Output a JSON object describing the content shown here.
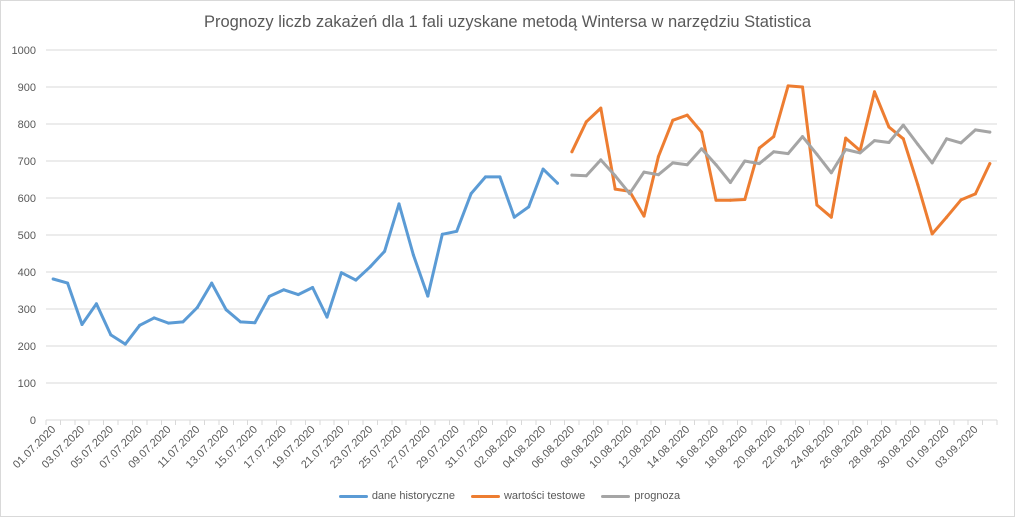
{
  "chart_data": {
    "type": "line",
    "title": "Prognozy liczb zakażeń dla 1 fali uzyskane metodą Wintersa w narzędziu Statistica",
    "ylim": [
      0,
      1000
    ],
    "y_ticks": [
      0,
      100,
      200,
      300,
      400,
      500,
      600,
      700,
      800,
      900,
      1000
    ],
    "grid": true,
    "legend": "bottom",
    "categories": [
      "01.07.2020",
      "02.07.2020",
      "03.07.2020",
      "04.07.2020",
      "05.07.2020",
      "06.07.2020",
      "07.07.2020",
      "08.07.2020",
      "09.07.2020",
      "10.07.2020",
      "11.07.2020",
      "12.07.2020",
      "13.07.2020",
      "14.07.2020",
      "15.07.2020",
      "16.07.2020",
      "17.07.2020",
      "18.07.2020",
      "19.07.2020",
      "20.07.2020",
      "21.07.2020",
      "22.07.2020",
      "23.07.2020",
      "24.07.2020",
      "25.07.2020",
      "26.07.2020",
      "27.07.2020",
      "28.07.2020",
      "29.07.2020",
      "30.07.2020",
      "31.07.2020",
      "01.08.2020",
      "02.08.2020",
      "03.08.2020",
      "04.08.2020",
      "05.08.2020",
      "06.08.2020",
      "07.08.2020",
      "08.08.2020",
      "09.08.2020",
      "10.08.2020",
      "11.08.2020",
      "12.08.2020",
      "13.08.2020",
      "14.08.2020",
      "15.08.2020",
      "16.08.2020",
      "17.08.2020",
      "18.08.2020",
      "19.08.2020",
      "20.08.2020",
      "21.08.2020",
      "22.08.2020",
      "23.08.2020",
      "24.08.2020",
      "25.08.2020",
      "26.08.2020",
      "27.08.2020",
      "28.08.2020",
      "29.08.2020",
      "30.08.2020",
      "31.08.2020",
      "01.09.2020",
      "02.09.2020",
      "03.09.2020",
      "04.09.2020"
    ],
    "series": [
      {
        "name": "dane historyczne",
        "color": "#5b9bd5",
        "values": [
          381,
          370,
          258,
          314,
          230,
          205,
          256,
          276,
          262,
          265,
          304,
          370,
          298,
          265,
          263,
          334,
          352,
          339,
          358,
          278,
          398,
          378,
          414,
          456,
          584,
          446,
          335,
          502,
          510,
          612,
          657,
          657,
          548,
          576,
          678,
          640,
          null,
          null,
          null,
          null,
          null,
          null,
          null,
          null,
          null,
          null,
          null,
          null,
          null,
          null,
          null,
          null,
          null,
          null,
          null,
          null,
          null,
          null,
          null,
          null,
          null,
          null,
          null,
          null,
          null,
          null
        ]
      },
      {
        "name": "wartości testowe",
        "color": "#ed7d31",
        "values": [
          null,
          null,
          null,
          null,
          null,
          null,
          null,
          null,
          null,
          null,
          null,
          null,
          null,
          null,
          null,
          null,
          null,
          null,
          null,
          null,
          null,
          null,
          null,
          null,
          null,
          null,
          null,
          null,
          null,
          null,
          null,
          null,
          null,
          null,
          null,
          null,
          725,
          806,
          843,
          624,
          618,
          551,
          712,
          810,
          824,
          778,
          594,
          594,
          596,
          735,
          766,
          903,
          900,
          581,
          548,
          762,
          728,
          887,
          792,
          760,
          636,
          503,
          548,
          595,
          611,
          693
        ]
      },
      {
        "name": "prognoza",
        "color": "#a5a5a5",
        "values": [
          null,
          null,
          null,
          null,
          null,
          null,
          null,
          null,
          null,
          null,
          null,
          null,
          null,
          null,
          null,
          null,
          null,
          null,
          null,
          null,
          null,
          null,
          null,
          null,
          null,
          null,
          null,
          null,
          null,
          null,
          null,
          null,
          null,
          null,
          null,
          null,
          662,
          660,
          703,
          660,
          612,
          670,
          663,
          695,
          690,
          733,
          690,
          642,
          700,
          693,
          725,
          720,
          766,
          718,
          668,
          731,
          722,
          755,
          750,
          797,
          745,
          695,
          760,
          749,
          784,
          778
        ]
      }
    ]
  }
}
